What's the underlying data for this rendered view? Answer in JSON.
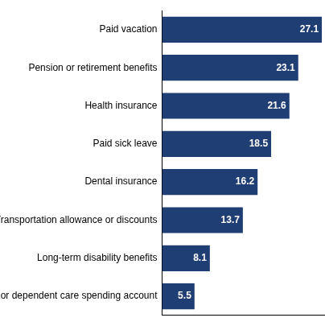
{
  "chart_data": {
    "type": "bar",
    "orientation": "horizontal",
    "categories": [
      "Paid vacation",
      "Pension or retirement benefits",
      "Health insurance",
      "Paid sick leave",
      "Dental insurance",
      "Transportation allowance or discounts",
      "Long-term disability benefits",
      "Flexible health or dependent care spending account"
    ],
    "values": [
      27.1,
      23.1,
      21.6,
      18.5,
      16.2,
      13.7,
      8.1,
      5.5
    ],
    "color": "#1f3e73",
    "xlim": [
      0,
      27.5
    ],
    "grid": false,
    "data_labels": true,
    "tick_labels": "y"
  }
}
